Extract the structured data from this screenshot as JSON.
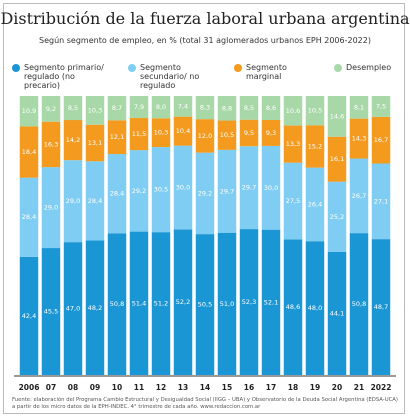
{
  "chart_data": {
    "type": "stacked-bar-100",
    "title": "Distribución de la fuerza laboral urbana argentina",
    "subtitle": "Según segmento de empleo, en % (total 31 aglomerados urbanos EPH 2006-2022)",
    "categories": [
      "2006",
      "07",
      "08",
      "09",
      "10",
      "11",
      "12",
      "13",
      "14",
      "15",
      "16",
      "17",
      "18",
      "19",
      "20",
      "21",
      "2022"
    ],
    "series": [
      {
        "name": "Segmento primario/ regulado (no precario)",
        "color": "#1a96d4",
        "values": [
          42.4,
          45.5,
          47.0,
          48.2,
          50.8,
          51.4,
          51.2,
          52.2,
          50.5,
          51.0,
          52.3,
          52.1,
          48.6,
          48.0,
          44.1,
          50.8,
          48.7
        ],
        "value_labels": [
          "42,4",
          "45,5",
          "47,0",
          "48,2",
          "50,8",
          "51,4",
          "51,2",
          "52,2",
          "50,5",
          "51,0",
          "52,3",
          "52,1",
          "48,6",
          "48,0",
          "44,1",
          "50,8",
          "48,7"
        ]
      },
      {
        "name": "Segmento secundario/ no regulado",
        "color": "#7fcdf2",
        "values": [
          28.4,
          29.0,
          29.0,
          28.4,
          28.4,
          29.2,
          30.5,
          30.0,
          29.2,
          29.7,
          29.7,
          30.0,
          27.5,
          26.4,
          25.2,
          26.7,
          27.1
        ],
        "value_labels": [
          "28,4",
          "29,0",
          "29,0",
          "28,4",
          "28,4",
          "29,2",
          "30,5",
          "30,0",
          "29,2",
          "29,7",
          "29,7",
          "30,0",
          "27,5",
          "26,4",
          "25,2",
          "26,7",
          "27,1"
        ]
      },
      {
        "name": "Segmento marginal",
        "color": "#f39a1f",
        "values": [
          18.4,
          16.3,
          14.2,
          13.1,
          12.1,
          11.5,
          10.3,
          10.4,
          12.0,
          10.5,
          9.5,
          9.3,
          13.3,
          15.2,
          16.1,
          14.3,
          16.7
        ],
        "value_labels": [
          "18,4",
          "16,3",
          "14,2",
          "13,1",
          "12,1",
          "11,5",
          "10,3",
          "10,4",
          "12,0",
          "10,5",
          "9,5",
          "9,3",
          "13,3",
          "15,2",
          "16,1",
          "14,3",
          "16,7"
        ]
      },
      {
        "name": "Desempleo",
        "color": "#a8d8a8",
        "values": [
          10.9,
          9.2,
          8.5,
          10.3,
          8.7,
          7.9,
          8.0,
          7.4,
          8.3,
          8.8,
          8.5,
          8.6,
          10.6,
          10.5,
          14.6,
          8.1,
          7.5
        ],
        "value_labels": [
          "10,9",
          "9,2",
          "8,5",
          "10,3",
          "8,7",
          "7,9",
          "8,0",
          "7,4",
          "8,3",
          "8,8",
          "8,5",
          "8,6",
          "10,6",
          "10,5",
          "14,6",
          "8,1",
          "7,5"
        ]
      }
    ],
    "source": "Fuente: elaboración del Programa Cambio Estructural y Desigualdad Social (IIGG – UBA) y Observatorio de la Deuda Social Argentina (EDSA-UCA) a partir de los micro datos de la EPH-INDEC. 4° trimestre de cada año. www.redaccion.com.ar"
  }
}
